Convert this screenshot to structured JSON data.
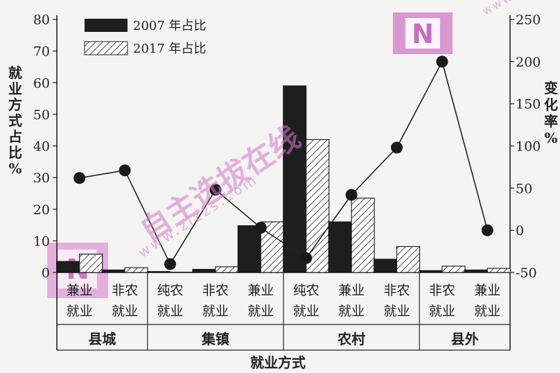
{
  "chart_data": {
    "type": "bar",
    "groups": [
      {
        "name": "县城",
        "categories": [
          "兼业就业",
          "非农就业"
        ]
      },
      {
        "name": "集镇",
        "categories": [
          "纯农就业",
          "非农就业",
          "兼业就业"
        ]
      },
      {
        "name": "农村",
        "categories": [
          "纯农就业",
          "兼业就业",
          "非农就业"
        ]
      },
      {
        "name": "县外",
        "categories": [
          "非农就业",
          "兼业就业"
        ]
      }
    ],
    "category_lines": [
      [
        "兼业",
        "就业"
      ],
      [
        "非农",
        "就业"
      ],
      [
        "纯农",
        "就业"
      ],
      [
        "非农",
        "就业"
      ],
      [
        "兼业",
        "就业"
      ],
      [
        "纯农",
        "就业"
      ],
      [
        "兼业",
        "就业"
      ],
      [
        "非农",
        "就业"
      ],
      [
        "非农",
        "就业"
      ],
      [
        "兼业",
        "就业"
      ]
    ],
    "series": [
      {
        "name": "2007 年占比",
        "axis": "left",
        "style": "solid",
        "color": "#1e1e1e",
        "values": [
          3.5,
          0.8,
          0.3,
          1.0,
          14.8,
          59.0,
          16.0,
          4.2,
          0.6,
          0.8
        ]
      },
      {
        "name": "2017 年占比",
        "axis": "left",
        "style": "hatched",
        "color": "#ffffff",
        "values": [
          5.8,
          1.5,
          0.1,
          1.8,
          16.0,
          42.0,
          23.5,
          8.2,
          2.0,
          1.3
        ]
      },
      {
        "name": "变化率",
        "axis": "right",
        "style": "line-markers",
        "color": "#222222",
        "values": [
          62,
          71,
          -40,
          48,
          3,
          -33,
          42,
          98,
          200,
          0
        ]
      }
    ],
    "ylabel": "就业方式占比%",
    "y2label": "变化率%",
    "xlabel": "就业方式",
    "ylim": [
      0,
      80
    ],
    "yticks": [
      "0",
      "10",
      "20",
      "30",
      "40",
      "50",
      "60",
      "70",
      "80"
    ],
    "y2lim": [
      -50,
      250
    ],
    "y2ticks": [
      "-50",
      "0",
      "50",
      "100",
      "150",
      "200",
      "250"
    ],
    "legend_position": "top-left",
    "grid": false
  },
  "watermark": {
    "text_cn": "自主选拔在线",
    "text_url": "www.zizzs.com",
    "logo_letter": "N",
    "color": "#d27ac8"
  }
}
